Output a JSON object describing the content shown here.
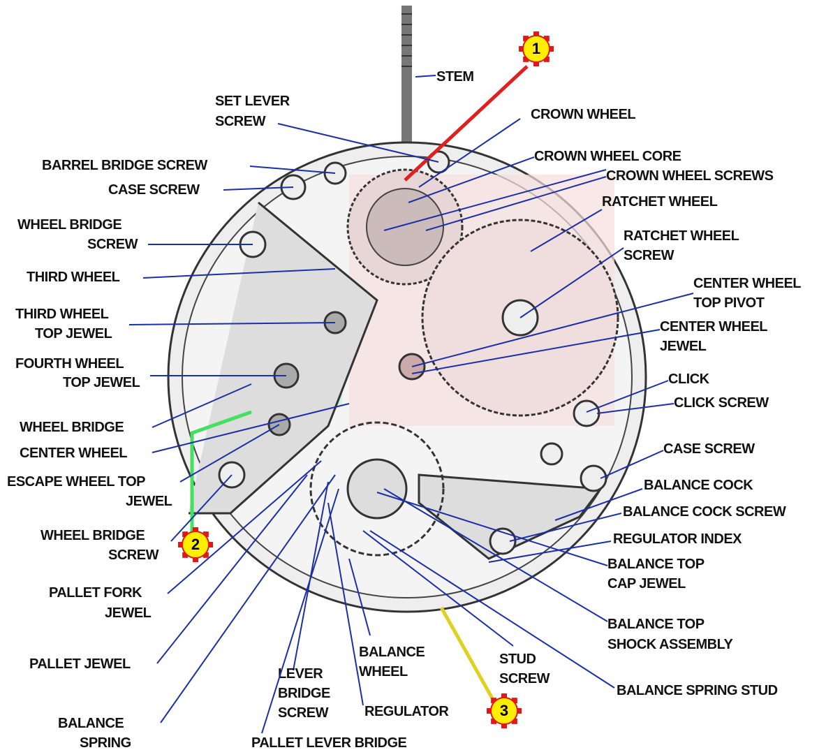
{
  "labels": [
    {
      "lines": [
        "STEM"
      ]
    },
    {
      "lines": [
        "SET LEVER",
        "SCREW"
      ]
    },
    {
      "lines": [
        "CROWN WHEEL"
      ]
    },
    {
      "lines": [
        "BARREL BRIDGE SCREW"
      ]
    },
    {
      "lines": [
        "CASE SCREW"
      ]
    },
    {
      "lines": [
        "CROWN WHEEL CORE"
      ]
    },
    {
      "lines": [
        "CROWN WHEEL SCREWS"
      ]
    },
    {
      "lines": [
        "RATCHET WHEEL"
      ]
    },
    {
      "lines": [
        "RATCHET WHEEL",
        "SCREW"
      ]
    },
    {
      "lines": [
        "WHEEL BRIDGE",
        "SCREW"
      ]
    },
    {
      "lines": [
        "THIRD WHEEL"
      ]
    },
    {
      "lines": [
        "CENTER WHEEL",
        "TOP PIVOT"
      ]
    },
    {
      "lines": [
        "THIRD WHEEL",
        "TOP JEWEL"
      ]
    },
    {
      "lines": [
        "CENTER WHEEL",
        "JEWEL"
      ]
    },
    {
      "lines": [
        "FOURTH WHEEL",
        "TOP JEWEL"
      ]
    },
    {
      "lines": [
        "CLICK"
      ]
    },
    {
      "lines": [
        "CLICK SCREW"
      ]
    },
    {
      "lines": [
        "WHEEL BRIDGE"
      ]
    },
    {
      "lines": [
        "CENTER WHEEL"
      ]
    },
    {
      "lines": [
        "CASE SCREW"
      ]
    },
    {
      "lines": [
        "ESCAPE WHEEL TOP",
        "JEWEL"
      ]
    },
    {
      "lines": [
        "BALANCE COCK"
      ]
    },
    {
      "lines": [
        "BALANCE COCK SCREW"
      ]
    },
    {
      "lines": [
        "WHEEL BRIDGE",
        "SCREW"
      ]
    },
    {
      "lines": [
        "REGULATOR INDEX"
      ]
    },
    {
      "lines": [
        "BALANCE TOP",
        "CAP JEWEL"
      ]
    },
    {
      "lines": [
        "PALLET FORK",
        "JEWEL"
      ]
    },
    {
      "lines": [
        "BALANCE TOP",
        "SHOCK ASSEMBLY"
      ]
    },
    {
      "lines": [
        "PALLET JEWEL"
      ]
    },
    {
      "lines": [
        "BALANCE",
        "WHEEL"
      ]
    },
    {
      "lines": [
        "STUD",
        "SCREW"
      ]
    },
    {
      "lines": [
        "LEVER",
        "BRIDGE",
        "SCREW"
      ]
    },
    {
      "lines": [
        "BALANCE SPRING STUD"
      ]
    },
    {
      "lines": [
        "REGULATOR"
      ]
    },
    {
      "lines": [
        "BALANCE",
        "SPRING"
      ]
    },
    {
      "lines": [
        "PALLET LEVER BRIDGE"
      ]
    }
  ],
  "markers": [
    "1",
    "2",
    "3"
  ]
}
